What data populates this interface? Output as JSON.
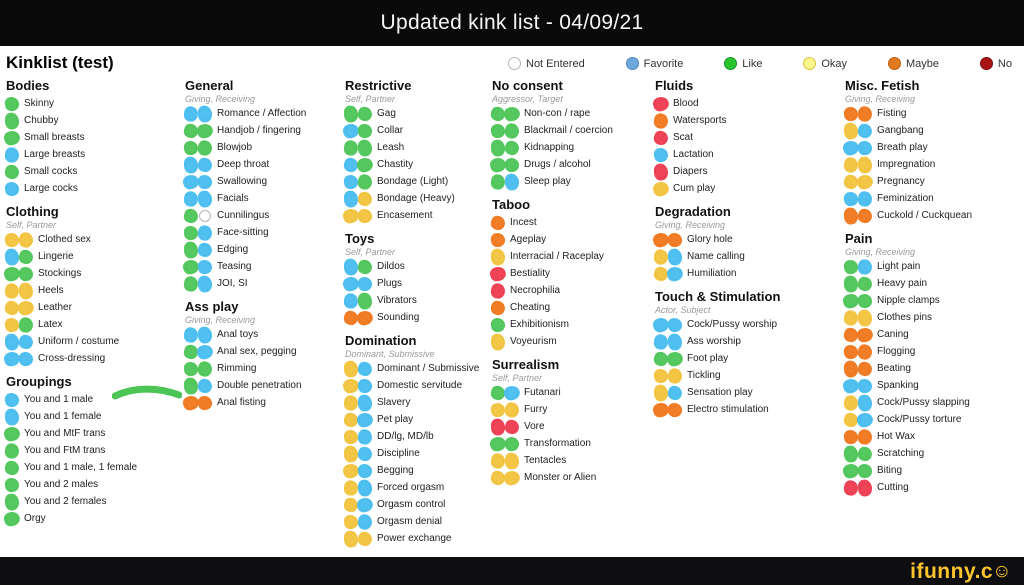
{
  "title_bar": {
    "title": "Updated kink list - 04/09/21"
  },
  "page_title": "Kinklist (test)",
  "watermark": {
    "text": "ifunny.c",
    "smiley": "☺"
  },
  "mark_colors": {
    "favorite": "#47bdf0",
    "like": "#4cc556",
    "okay": "#f2c33c",
    "maybe": "#f0761a",
    "no": "#ee3a4e"
  },
  "legend": [
    {
      "key": "not_entered",
      "label": "Not Entered",
      "fill": "#ffffff",
      "border": "#b5b5b5"
    },
    {
      "key": "favorite",
      "label": "Favorite",
      "fill": "#6fa8dc",
      "border": "#4a86c8"
    },
    {
      "key": "like",
      "label": "Like",
      "fill": "#28c52e",
      "border": "#15982a"
    },
    {
      "key": "okay",
      "label": "Okay",
      "fill": "#faf58c",
      "border": "#d9c23f"
    },
    {
      "key": "maybe",
      "label": "Maybe",
      "fill": "#e07b22",
      "border": "#b85e10"
    },
    {
      "key": "no",
      "label": "No",
      "fill": "#a81414",
      "border": "#7d0c0c"
    }
  ],
  "columns": [
    [
      {
        "title": "Bodies",
        "subtitle": "",
        "items": [
          {
            "label": "Skinny",
            "marks": [
              "like"
            ]
          },
          {
            "label": "Chubby",
            "marks": [
              "like"
            ]
          },
          {
            "label": "Small breasts",
            "marks": [
              "like"
            ]
          },
          {
            "label": "Large breasts",
            "marks": [
              "favorite"
            ]
          },
          {
            "label": "Small cocks",
            "marks": [
              "like"
            ]
          },
          {
            "label": "Large cocks",
            "marks": [
              "favorite"
            ]
          }
        ]
      },
      {
        "title": "Clothing",
        "subtitle": "Self, Partner",
        "items": [
          {
            "label": "Clothed sex",
            "marks": [
              "okay",
              "okay"
            ]
          },
          {
            "label": "Lingerie",
            "marks": [
              "favorite",
              "like"
            ]
          },
          {
            "label": "Stockings",
            "marks": [
              "like",
              "like"
            ]
          },
          {
            "label": "Heels",
            "marks": [
              "okay",
              "okay"
            ]
          },
          {
            "label": "Leather",
            "marks": [
              "okay",
              "okay"
            ]
          },
          {
            "label": "Latex",
            "marks": [
              "okay",
              "like"
            ]
          },
          {
            "label": "Uniform / costume",
            "marks": [
              "favorite",
              "favorite"
            ]
          },
          {
            "label": "Cross-dressing",
            "marks": [
              "favorite",
              "favorite"
            ]
          }
        ]
      },
      {
        "title": "Groupings",
        "subtitle": "",
        "items": [
          {
            "label": "You and 1 male",
            "marks": [
              "favorite"
            ]
          },
          {
            "label": "You and 1 female",
            "marks": [
              "favorite"
            ]
          },
          {
            "label": "You and MtF trans",
            "marks": [
              "like"
            ]
          },
          {
            "label": "You and FtM trans",
            "marks": [
              "like"
            ]
          },
          {
            "label": "You and 1 male, 1 female",
            "marks": [
              "like"
            ]
          },
          {
            "label": "You and 2 males",
            "marks": [
              "like"
            ]
          },
          {
            "label": "You and 2 females",
            "marks": [
              "like"
            ]
          },
          {
            "label": "Orgy",
            "marks": [
              "like"
            ]
          }
        ]
      }
    ],
    [
      {
        "title": "General",
        "subtitle": "Giving, Receiving",
        "items": [
          {
            "label": "Romance / Affection",
            "marks": [
              "favorite",
              "favorite"
            ]
          },
          {
            "label": "Handjob / fingering",
            "marks": [
              "like",
              "like"
            ]
          },
          {
            "label": "Blowjob",
            "marks": [
              "like",
              "like"
            ]
          },
          {
            "label": "Deep throat",
            "marks": [
              "favorite",
              "favorite"
            ]
          },
          {
            "label": "Swallowing",
            "marks": [
              "favorite",
              "favorite"
            ]
          },
          {
            "label": "Facials",
            "marks": [
              "favorite",
              "favorite"
            ]
          },
          {
            "label": "Cunnilingus",
            "marks": [
              "like",
              "not_entered"
            ]
          },
          {
            "label": "Face-sitting",
            "marks": [
              "like",
              "favorite"
            ]
          },
          {
            "label": "Edging",
            "marks": [
              "like",
              "favorite"
            ]
          },
          {
            "label": "Teasing",
            "marks": [
              "like",
              "favorite"
            ]
          },
          {
            "label": "JOI, SI",
            "marks": [
              "like",
              "favorite"
            ]
          }
        ]
      },
      {
        "title": "Ass play",
        "subtitle": "Giving, Receiving",
        "items": [
          {
            "label": "Anal toys",
            "marks": [
              "favorite",
              "favorite"
            ]
          },
          {
            "label": "Anal sex, pegging",
            "marks": [
              "like",
              "favorite"
            ]
          },
          {
            "label": "Rimming",
            "marks": [
              "like",
              "like"
            ]
          },
          {
            "label": "Double penetration",
            "marks": [
              "like",
              "favorite"
            ]
          },
          {
            "label": "Anal fisting",
            "marks": [
              "maybe",
              "maybe"
            ]
          }
        ]
      }
    ],
    [
      {
        "title": "Restrictive",
        "subtitle": "Self, Partner",
        "items": [
          {
            "label": "Gag",
            "marks": [
              "like",
              "like"
            ]
          },
          {
            "label": "Collar",
            "marks": [
              "favorite",
              "like"
            ]
          },
          {
            "label": "Leash",
            "marks": [
              "like",
              "like"
            ]
          },
          {
            "label": "Chastity",
            "marks": [
              "favorite",
              "like"
            ]
          },
          {
            "label": "Bondage (Light)",
            "marks": [
              "favorite",
              "like"
            ]
          },
          {
            "label": "Bondage (Heavy)",
            "marks": [
              "favorite",
              "okay"
            ]
          },
          {
            "label": "Encasement",
            "marks": [
              "okay",
              "okay"
            ]
          }
        ]
      },
      {
        "title": "Toys",
        "subtitle": "Self, Partner",
        "items": [
          {
            "label": "Dildos",
            "marks": [
              "favorite",
              "like"
            ]
          },
          {
            "label": "Plugs",
            "marks": [
              "favorite",
              "favorite"
            ]
          },
          {
            "label": "Vibrators",
            "marks": [
              "favorite",
              "like"
            ]
          },
          {
            "label": "Sounding",
            "marks": [
              "maybe",
              "maybe"
            ]
          }
        ]
      },
      {
        "title": "Domination",
        "subtitle": "Dominant, Submissive",
        "items": [
          {
            "label": "Dominant / Submissive",
            "marks": [
              "okay",
              "favorite"
            ]
          },
          {
            "label": "Domestic servitude",
            "marks": [
              "okay",
              "favorite"
            ]
          },
          {
            "label": "Slavery",
            "marks": [
              "okay",
              "favorite"
            ]
          },
          {
            "label": "Pet play",
            "marks": [
              "okay",
              "favorite"
            ]
          },
          {
            "label": "DD/lg, MD/lb",
            "marks": [
              "okay",
              "favorite"
            ]
          },
          {
            "label": "Discipline",
            "marks": [
              "okay",
              "favorite"
            ]
          },
          {
            "label": "Begging",
            "marks": [
              "okay",
              "favorite"
            ]
          },
          {
            "label": "Forced orgasm",
            "marks": [
              "okay",
              "favorite"
            ]
          },
          {
            "label": "Orgasm control",
            "marks": [
              "okay",
              "favorite"
            ]
          },
          {
            "label": "Orgasm denial",
            "marks": [
              "okay",
              "favorite"
            ]
          },
          {
            "label": "Power exchange",
            "marks": [
              "okay",
              "okay"
            ]
          }
        ]
      }
    ],
    [
      {
        "title": "No consent",
        "subtitle": "Aggressor, Target",
        "items": [
          {
            "label": "Non-con / rape",
            "marks": [
              "like",
              "like"
            ]
          },
          {
            "label": "Blackmail / coercion",
            "marks": [
              "like",
              "like"
            ]
          },
          {
            "label": "Kidnapping",
            "marks": [
              "like",
              "like"
            ]
          },
          {
            "label": "Drugs / alcohol",
            "marks": [
              "like",
              "like"
            ]
          },
          {
            "label": "Sleep play",
            "marks": [
              "like",
              "favorite"
            ]
          }
        ]
      },
      {
        "title": "Taboo",
        "subtitle": "",
        "items": [
          {
            "label": "Incest",
            "marks": [
              "maybe"
            ]
          },
          {
            "label": "Ageplay",
            "marks": [
              "maybe"
            ]
          },
          {
            "label": "Interracial / Raceplay",
            "marks": [
              "okay"
            ]
          },
          {
            "label": "Bestiality",
            "marks": [
              "no"
            ]
          },
          {
            "label": "Necrophilia",
            "marks": [
              "no"
            ]
          },
          {
            "label": "Cheating",
            "marks": [
              "maybe"
            ]
          },
          {
            "label": "Exhibitionism",
            "marks": [
              "like"
            ]
          },
          {
            "label": "Voyeurism",
            "marks": [
              "okay"
            ]
          }
        ]
      },
      {
        "title": "Surrealism",
        "subtitle": "Self, Partner",
        "items": [
          {
            "label": "Futanari",
            "marks": [
              "like",
              "favorite"
            ]
          },
          {
            "label": "Furry",
            "marks": [
              "okay",
              "okay"
            ]
          },
          {
            "label": "Vore",
            "marks": [
              "no",
              "no"
            ]
          },
          {
            "label": "Transformation",
            "marks": [
              "like",
              "like"
            ]
          },
          {
            "label": "Tentacles",
            "marks": [
              "okay",
              "okay"
            ]
          },
          {
            "label": "Monster or Alien",
            "marks": [
              "okay",
              "okay"
            ]
          }
        ]
      }
    ],
    [
      {
        "title": "Fluids",
        "subtitle": "",
        "items": [
          {
            "label": "Blood",
            "marks": [
              "no"
            ]
          },
          {
            "label": "Watersports",
            "marks": [
              "maybe"
            ]
          },
          {
            "label": "Scat",
            "marks": [
              "no"
            ]
          },
          {
            "label": "Lactation",
            "marks": [
              "favorite"
            ]
          },
          {
            "label": "Diapers",
            "marks": [
              "no"
            ]
          },
          {
            "label": "Cum play",
            "marks": [
              "okay"
            ]
          }
        ]
      },
      {
        "title": "Degradation",
        "subtitle": "Giving, Receiving",
        "items": [
          {
            "label": "Glory hole",
            "marks": [
              "maybe",
              "maybe"
            ]
          },
          {
            "label": "Name calling",
            "marks": [
              "okay",
              "favorite"
            ]
          },
          {
            "label": "Humiliation",
            "marks": [
              "okay",
              "favorite"
            ]
          }
        ]
      },
      {
        "title": "Touch & Stimulation",
        "subtitle": "Actor, Subject",
        "items": [
          {
            "label": "Cock/Pussy worship",
            "marks": [
              "favorite",
              "favorite"
            ]
          },
          {
            "label": "Ass worship",
            "marks": [
              "favorite",
              "favorite"
            ]
          },
          {
            "label": "Foot play",
            "marks": [
              "like",
              "like"
            ]
          },
          {
            "label": "Tickling",
            "marks": [
              "okay",
              "okay"
            ]
          },
          {
            "label": "Sensation play",
            "marks": [
              "okay",
              "favorite"
            ]
          },
          {
            "label": "Electro stimulation",
            "marks": [
              "maybe",
              "maybe"
            ]
          }
        ]
      }
    ],
    [
      {
        "title": "Misc. Fetish",
        "subtitle": "Giving, Receiving",
        "items": [
          {
            "label": "Fisting",
            "marks": [
              "maybe",
              "maybe"
            ]
          },
          {
            "label": "Gangbang",
            "marks": [
              "okay",
              "favorite"
            ]
          },
          {
            "label": "Breath play",
            "marks": [
              "favorite",
              "favorite"
            ]
          },
          {
            "label": "Impregnation",
            "marks": [
              "okay",
              "okay"
            ]
          },
          {
            "label": "Pregnancy",
            "marks": [
              "okay",
              "okay"
            ]
          },
          {
            "label": "Feminization",
            "marks": [
              "favorite",
              "favorite"
            ]
          },
          {
            "label": "Cuckold / Cuckquean",
            "marks": [
              "maybe",
              "maybe"
            ]
          }
        ]
      },
      {
        "title": "Pain",
        "subtitle": "Giving, Receiving",
        "items": [
          {
            "label": "Light pain",
            "marks": [
              "like",
              "favorite"
            ]
          },
          {
            "label": "Heavy pain",
            "marks": [
              "like",
              "like"
            ]
          },
          {
            "label": "Nipple clamps",
            "marks": [
              "like",
              "like"
            ]
          },
          {
            "label": "Clothes pins",
            "marks": [
              "okay",
              "okay"
            ]
          },
          {
            "label": "Caning",
            "marks": [
              "maybe",
              "maybe"
            ]
          },
          {
            "label": "Flogging",
            "marks": [
              "maybe",
              "maybe"
            ]
          },
          {
            "label": "Beating",
            "marks": [
              "maybe",
              "maybe"
            ]
          },
          {
            "label": "Spanking",
            "marks": [
              "favorite",
              "favorite"
            ]
          },
          {
            "label": "Cock/Pussy slapping",
            "marks": [
              "okay",
              "favorite"
            ]
          },
          {
            "label": "Cock/Pussy torture",
            "marks": [
              "okay",
              "favorite"
            ]
          },
          {
            "label": "Hot Wax",
            "marks": [
              "maybe",
              "maybe"
            ]
          },
          {
            "label": "Scratching",
            "marks": [
              "like",
              "like"
            ]
          },
          {
            "label": "Biting",
            "marks": [
              "like",
              "like"
            ]
          },
          {
            "label": "Cutting",
            "marks": [
              "no",
              "no"
            ]
          }
        ]
      }
    ]
  ]
}
